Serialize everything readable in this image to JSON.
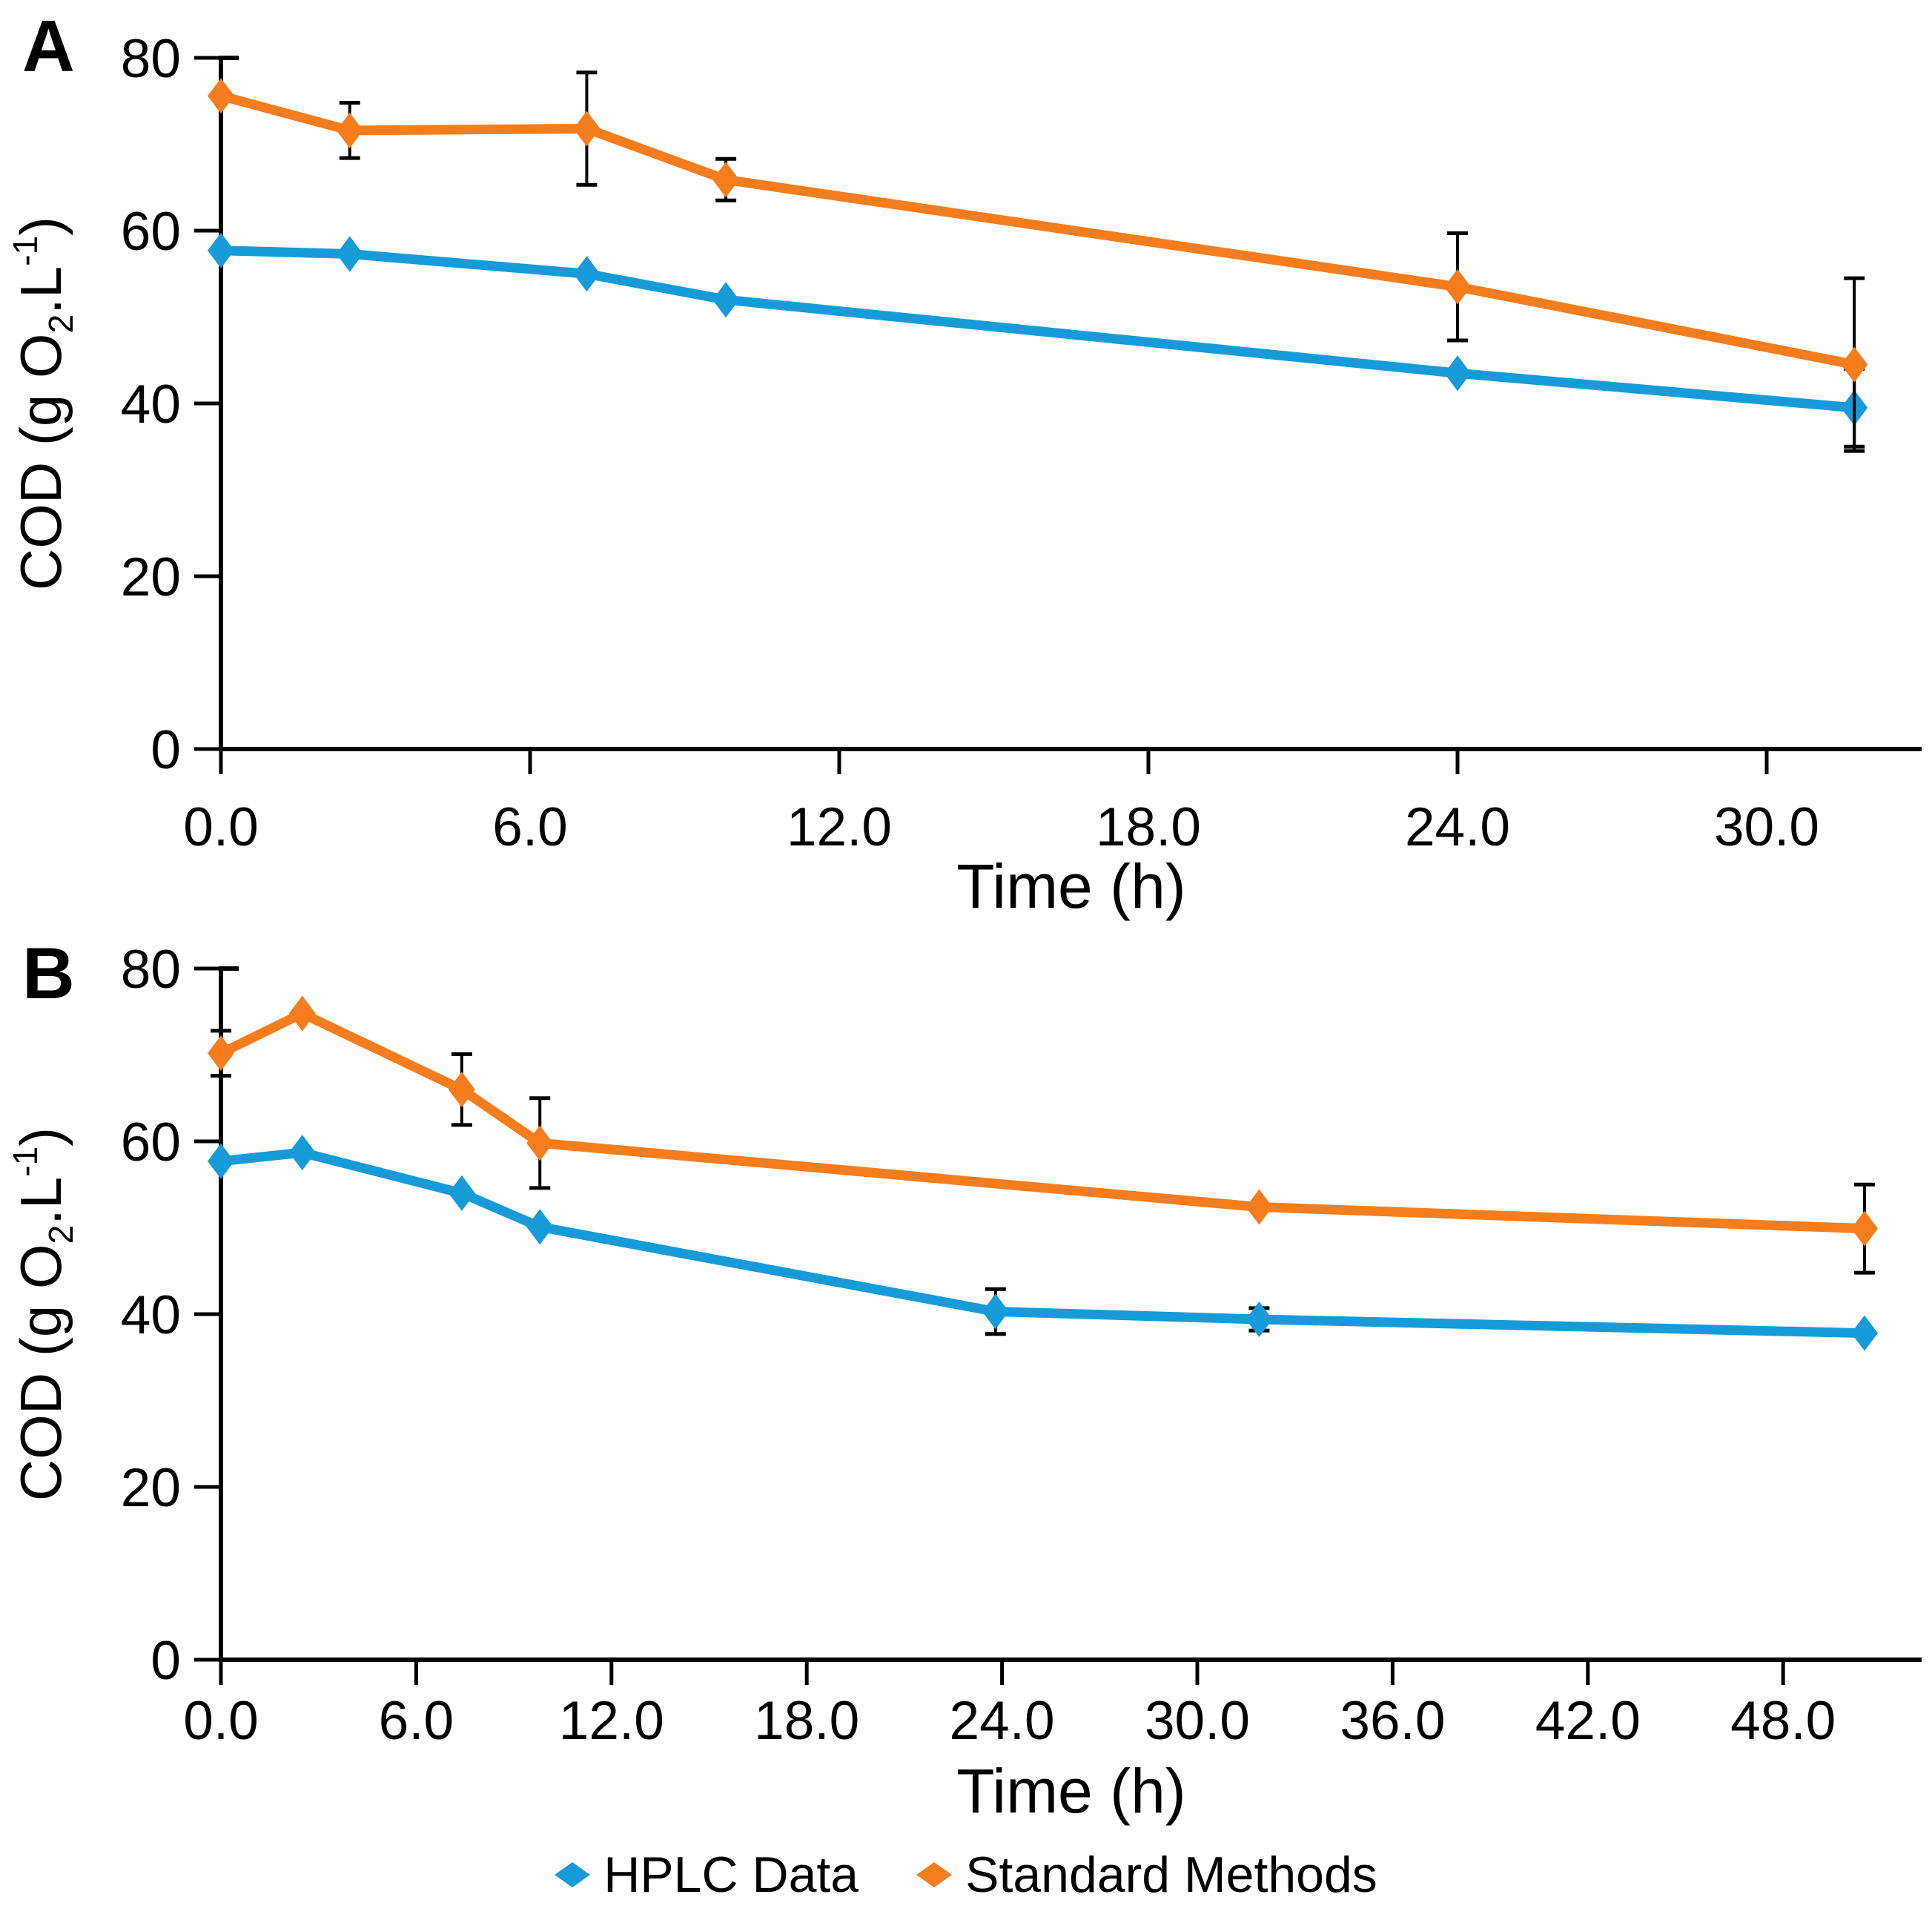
{
  "figure": {
    "background": "#FFFFFF"
  },
  "colors": {
    "hplc_blue": "#169BD8",
    "standard_orange": "#F67D1E",
    "error_bar": "#000000",
    "axis": "#000000",
    "text": "#000000"
  },
  "y_axis": {
    "title_plain": "COD (g O2.L-1)",
    "title_parts": [
      {
        "text": "COD (g O"
      },
      {
        "text": "2",
        "script": "sub"
      },
      {
        "text": ".L"
      },
      {
        "text": "-1",
        "script": "sup"
      },
      {
        "text": ")"
      }
    ],
    "range": [
      0,
      80
    ],
    "ticks": [
      {
        "value": 0,
        "label": "0"
      },
      {
        "value": 20,
        "label": "20"
      },
      {
        "value": 40,
        "label": "40"
      },
      {
        "value": 60,
        "label": "60"
      },
      {
        "value": 80,
        "label": "80"
      }
    ]
  },
  "legend": {
    "items": [
      {
        "key": "hplc",
        "label": "HPLC Data",
        "color_key": "hplc_blue"
      },
      {
        "key": "standard",
        "label": "Standard Methods",
        "color_key": "standard_orange"
      }
    ]
  },
  "chart_data": [
    {
      "panel": "A",
      "panel_label": "A",
      "type": "line",
      "xlabel": "Time (h)",
      "ylabel": "COD (g O2.L-1)",
      "xlim": [
        0,
        33
      ],
      "ylim": [
        0,
        80
      ],
      "grid": false,
      "xticks": [
        {
          "value": 0,
          "label": "0.0"
        },
        {
          "value": 6,
          "label": "6.0"
        },
        {
          "value": 12,
          "label": "12.0"
        },
        {
          "value": 18,
          "label": "18.0"
        },
        {
          "value": 24,
          "label": "24.0"
        },
        {
          "value": 30,
          "label": "30.0"
        }
      ],
      "series": [
        {
          "key": "hplc",
          "name": "HPLC Data",
          "color_key": "hplc_blue",
          "points": [
            {
              "x": 0.0,
              "y": 57.7
            },
            {
              "x": 2.5,
              "y": 57.3
            },
            {
              "x": 7.1,
              "y": 55.0
            },
            {
              "x": 9.8,
              "y": 52.0
            },
            {
              "x": 24.0,
              "y": 43.5
            },
            {
              "x": 31.7,
              "y": 39.5,
              "err": 4.5
            }
          ]
        },
        {
          "key": "standard",
          "name": "Standard Methods",
          "color_key": "standard_orange",
          "points": [
            {
              "x": 0.0,
              "y": 75.6
            },
            {
              "x": 2.5,
              "y": 71.6,
              "err": 3.2
            },
            {
              "x": 7.1,
              "y": 71.8,
              "err": 6.5
            },
            {
              "x": 9.8,
              "y": 65.9,
              "err": 2.4
            },
            {
              "x": 24.0,
              "y": 53.5,
              "err": 6.2
            },
            {
              "x": 31.7,
              "y": 44.5,
              "err": 10.0
            }
          ]
        }
      ]
    },
    {
      "panel": "B",
      "panel_label": "B",
      "type": "line",
      "xlabel": "Time (h)",
      "ylabel": "COD (g O2.L-1)",
      "xlim": [
        0,
        52
      ],
      "ylim": [
        0,
        80
      ],
      "grid": false,
      "xticks": [
        {
          "value": 0,
          "label": "0.0"
        },
        {
          "value": 6,
          "label": "6.0"
        },
        {
          "value": 12,
          "label": "12.0"
        },
        {
          "value": 18,
          "label": "18.0"
        },
        {
          "value": 24,
          "label": "24.0"
        },
        {
          "value": 30,
          "label": "30.0"
        },
        {
          "value": 36,
          "label": "36.0"
        },
        {
          "value": 42,
          "label": "42.0"
        },
        {
          "value": 48,
          "label": "48.0"
        }
      ],
      "series": [
        {
          "key": "hplc",
          "name": "HPLC Data",
          "color_key": "hplc_blue",
          "points": [
            {
              "x": 0.0,
              "y": 57.7
            },
            {
              "x": 2.5,
              "y": 58.7
            },
            {
              "x": 7.4,
              "y": 54.0
            },
            {
              "x": 9.8,
              "y": 50.1
            },
            {
              "x": 23.8,
              "y": 40.3,
              "err": 2.6
            },
            {
              "x": 31.9,
              "y": 39.4,
              "err": 1.3
            },
            {
              "x": 50.5,
              "y": 37.8
            }
          ]
        },
        {
          "key": "standard",
          "name": "Standard Methods",
          "color_key": "standard_orange",
          "points": [
            {
              "x": 0.0,
              "y": 70.2,
              "err": 2.6
            },
            {
              "x": 2.5,
              "y": 74.8
            },
            {
              "x": 7.4,
              "y": 66.0,
              "err": 4.1
            },
            {
              "x": 9.8,
              "y": 59.8,
              "err": 5.2
            },
            {
              "x": 31.9,
              "y": 52.4
            },
            {
              "x": 50.5,
              "y": 49.9,
              "err": 5.1
            }
          ]
        }
      ]
    }
  ]
}
